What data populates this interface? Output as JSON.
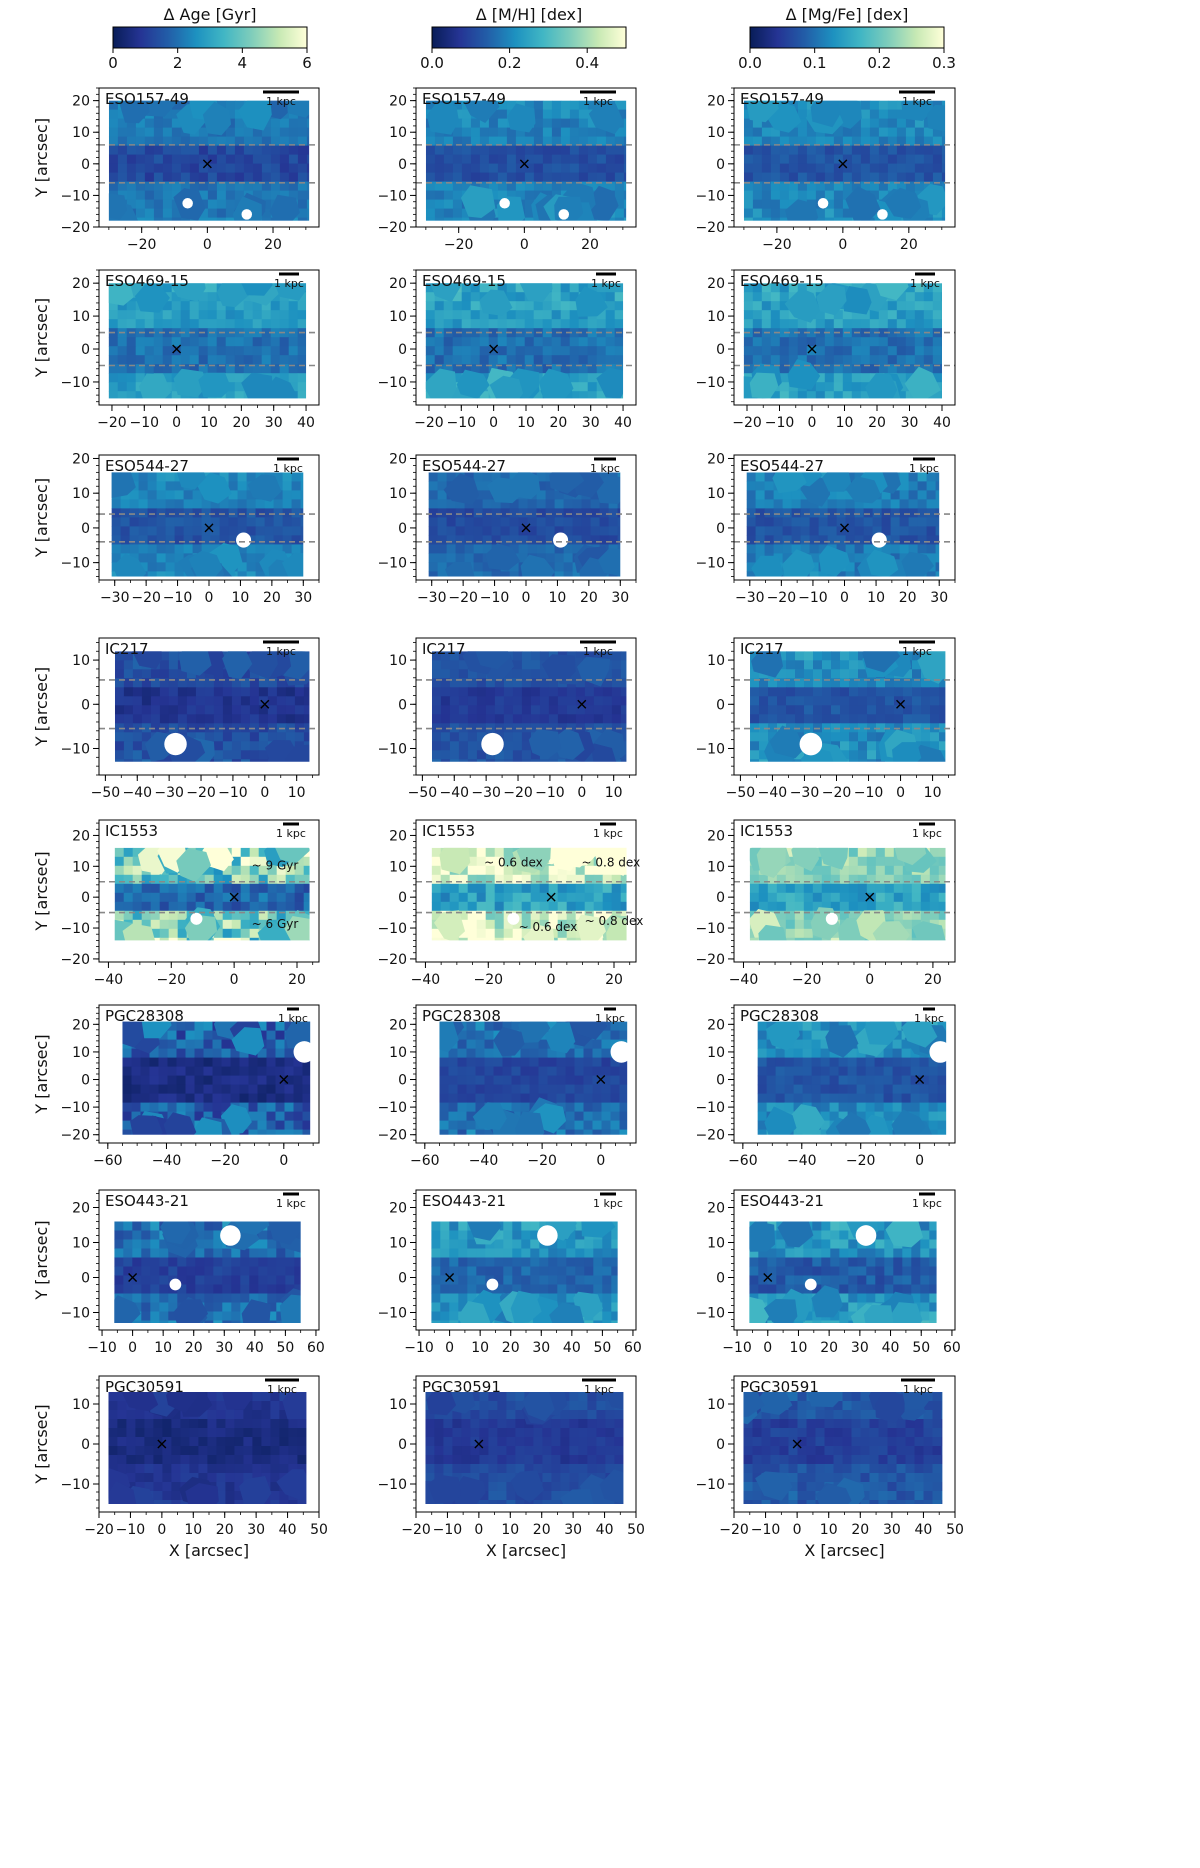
{
  "figure": {
    "columns": [
      {
        "key": "age",
        "colorbar_label": "Δ Age [Gyr]",
        "range": [
          0,
          6
        ],
        "ticks": [
          "0",
          "2",
          "4",
          "6"
        ],
        "tick_values": [
          0,
          2,
          4,
          6
        ]
      },
      {
        "key": "mh",
        "colorbar_label": "Δ [M/H] [dex]",
        "range": [
          0,
          0.5
        ],
        "ticks": [
          "0.0",
          "0.2",
          "0.4"
        ],
        "tick_values": [
          0,
          0.2,
          0.4
        ]
      },
      {
        "key": "mgfe",
        "colorbar_label": "Δ [Mg/Fe] [dex]",
        "range": [
          0,
          0.3
        ],
        "ticks": [
          "0.0",
          "0.1",
          "0.2",
          "0.3"
        ],
        "tick_values": [
          0,
          0.1,
          0.2,
          0.3
        ]
      }
    ],
    "colormap": [
      "#081d58",
      "#253494",
      "#225ea8",
      "#1d91c0",
      "#41b6c4",
      "#7fcdbb",
      "#c7e9b4",
      "#ffffd9"
    ],
    "ylabel": "Y [arcsec]",
    "xlabel": "X [arcsec]",
    "scalebar_label": "1 kpc"
  },
  "chart_data": [
    {
      "type": "heatmap",
      "galaxy": "ESO157-49",
      "xlim": [
        -33,
        34
      ],
      "ylim": [
        -20,
        24
      ],
      "xticks": [
        -20,
        0,
        20
      ],
      "yticks": [
        -20,
        -10,
        0,
        10,
        20
      ],
      "data_extent": {
        "x": [
          -30,
          31
        ],
        "y": [
          -18,
          20
        ]
      },
      "thin_disk": [
        -6,
        6
      ],
      "center": [
        0,
        0
      ],
      "masked": [
        {
          "x": -6,
          "y": -12.5,
          "r": 1
        },
        {
          "x": 12,
          "y": -16,
          "r": 1
        }
      ],
      "annotations": [],
      "age": {
        "mid": [
          0.9,
          1.6
        ],
        "outer": [
          1.8,
          2.6
        ]
      },
      "mh": {
        "mid": [
          0.09,
          0.14
        ],
        "outer": [
          0.16,
          0.24
        ]
      },
      "mgfe": {
        "mid": [
          0.06,
          0.09
        ],
        "outer": [
          0.1,
          0.15
        ]
      }
    },
    {
      "type": "heatmap",
      "galaxy": "ESO469-15",
      "xlim": [
        -24,
        44
      ],
      "ylim": [
        -17,
        24
      ],
      "xticks": [
        -20,
        -10,
        0,
        10,
        20,
        30,
        40
      ],
      "yticks": [
        -10,
        0,
        10,
        20
      ],
      "data_extent": {
        "x": [
          -21,
          40
        ],
        "y": [
          -15,
          20
        ]
      },
      "thin_disk": [
        -5,
        5
      ],
      "center": [
        0,
        0
      ],
      "masked": [],
      "annotations": [],
      "age": {
        "mid": [
          1.6,
          2.4
        ],
        "outer": [
          2.4,
          3.4
        ]
      },
      "mh": {
        "mid": [
          0.13,
          0.2
        ],
        "outer": [
          0.2,
          0.3
        ]
      },
      "mgfe": {
        "mid": [
          0.08,
          0.12
        ],
        "outer": [
          0.12,
          0.18
        ]
      }
    },
    {
      "type": "heatmap",
      "galaxy": "ESO544-27",
      "xlim": [
        -35,
        35
      ],
      "ylim": [
        -15,
        21
      ],
      "xticks": [
        -30,
        -20,
        -10,
        0,
        10,
        20,
        30
      ],
      "yticks": [
        -10,
        0,
        10,
        20
      ],
      "data_extent": {
        "x": [
          -31,
          30
        ],
        "y": [
          -14,
          16
        ]
      },
      "thin_disk": [
        -4,
        4
      ],
      "center": [
        0,
        0
      ],
      "masked": [
        {
          "x": 11,
          "y": -3.5,
          "r": 1.5
        }
      ],
      "annotations": [],
      "age": {
        "mid": [
          1.2,
          1.8
        ],
        "outer": [
          2.0,
          2.8
        ]
      },
      "mh": {
        "mid": [
          0.09,
          0.13
        ],
        "outer": [
          0.13,
          0.19
        ]
      },
      "mgfe": {
        "mid": [
          0.06,
          0.09
        ],
        "outer": [
          0.09,
          0.14
        ]
      }
    },
    {
      "type": "heatmap",
      "galaxy": "IC217",
      "xlim": [
        -52,
        17
      ],
      "ylim": [
        -16,
        15
      ],
      "xticks": [
        -50,
        -40,
        -30,
        -20,
        -10,
        0,
        10
      ],
      "yticks": [
        -10,
        0,
        10
      ],
      "data_extent": {
        "x": [
          -47,
          14
        ],
        "y": [
          -13,
          12
        ]
      },
      "thin_disk": [
        -5.5,
        5.5
      ],
      "center": [
        0,
        0
      ],
      "masked": [
        {
          "x": -28,
          "y": -9,
          "r": 2.2
        }
      ],
      "annotations": [],
      "age": {
        "mid": [
          0.5,
          1.1
        ],
        "outer": [
          1.0,
          1.9
        ]
      },
      "mh": {
        "mid": [
          0.06,
          0.1
        ],
        "outer": [
          0.1,
          0.15
        ]
      },
      "mgfe": {
        "mid": [
          0.06,
          0.09
        ],
        "outer": [
          0.1,
          0.16
        ]
      }
    },
    {
      "type": "heatmap",
      "galaxy": "IC1553",
      "xlim": [
        -43,
        27
      ],
      "ylim": [
        -21,
        25
      ],
      "xticks": [
        -40,
        -20,
        0,
        20
      ],
      "yticks": [
        -20,
        -10,
        0,
        10,
        20
      ],
      "data_extent": {
        "x": [
          -38,
          24
        ],
        "y": [
          -14,
          16
        ]
      },
      "thin_disk": [
        -5,
        5
      ],
      "center": [
        0,
        0
      ],
      "masked": [
        {
          "x": -12,
          "y": -7,
          "r": 1.2
        }
      ],
      "annotations": [
        {
          "panel": "age",
          "text": "~ 9 Gyr",
          "x": 13,
          "y": 9
        },
        {
          "panel": "age",
          "text": "~ 6 Gyr",
          "x": 13,
          "y": -10
        },
        {
          "panel": "mh",
          "text": "~ 0.6 dex",
          "x": -12,
          "y": 10
        },
        {
          "panel": "mh",
          "text": "~ 0.8 dex",
          "x": 19,
          "y": 10
        },
        {
          "panel": "mh",
          "text": "~ 0.6 dex",
          "x": -1,
          "y": -11
        },
        {
          "panel": "mh",
          "text": "~ 0.8 dex",
          "x": 20,
          "y": -9
        }
      ],
      "age": {
        "mid": [
          1.2,
          2.4
        ],
        "outer": [
          2.5,
          6.5
        ]
      },
      "mh": {
        "mid": [
          0.18,
          0.3
        ],
        "outer": [
          0.34,
          0.6
        ]
      },
      "mgfe": {
        "mid": [
          0.12,
          0.18
        ],
        "outer": [
          0.19,
          0.27
        ]
      }
    },
    {
      "type": "heatmap",
      "galaxy": "PGC28308",
      "xlim": [
        -63,
        12
      ],
      "ylim": [
        -23,
        27
      ],
      "xticks": [
        -60,
        -40,
        -20,
        0
      ],
      "yticks": [
        -20,
        -10,
        0,
        10,
        20
      ],
      "data_extent": {
        "x": [
          -55,
          9
        ],
        "y": [
          -20,
          21
        ]
      },
      "thin_disk": null,
      "center": [
        0,
        0
      ],
      "masked": [
        {
          "x": 7,
          "y": 10,
          "r": 2.3
        }
      ],
      "annotations": [],
      "age": {
        "mid": [
          0.3,
          0.9
        ],
        "outer": [
          0.8,
          2.8
        ]
      },
      "mh": {
        "mid": [
          0.08,
          0.12
        ],
        "outer": [
          0.12,
          0.22
        ]
      },
      "mgfe": {
        "mid": [
          0.06,
          0.09
        ],
        "outer": [
          0.1,
          0.16
        ]
      }
    },
    {
      "type": "heatmap",
      "galaxy": "ESO443-21",
      "xlim": [
        -11,
        61
      ],
      "ylim": [
        -15,
        25
      ],
      "xticks": [
        -10,
        0,
        10,
        20,
        30,
        40,
        50,
        60
      ],
      "yticks": [
        -10,
        0,
        10,
        20
      ],
      "data_extent": {
        "x": [
          -6,
          55
        ],
        "y": [
          -13,
          16
        ]
      },
      "thin_disk": null,
      "center": [
        0,
        0
      ],
      "masked": [
        {
          "x": 32,
          "y": 12,
          "r": 2.1
        },
        {
          "x": 14,
          "y": -2,
          "r": 1.2
        }
      ],
      "annotations": [],
      "age": {
        "mid": [
          0.8,
          1.4
        ],
        "outer": [
          1.3,
          2.8
        ]
      },
      "mh": {
        "mid": [
          0.12,
          0.18
        ],
        "outer": [
          0.18,
          0.28
        ]
      },
      "mgfe": {
        "mid": [
          0.06,
          0.1
        ],
        "outer": [
          0.1,
          0.18
        ]
      }
    },
    {
      "type": "heatmap",
      "galaxy": "PGC30591",
      "xlim": [
        -20,
        50
      ],
      "ylim": [
        -17,
        17
      ],
      "xticks": [
        -20,
        -10,
        0,
        10,
        20,
        30,
        40,
        50
      ],
      "yticks": [
        -10,
        0,
        10
      ],
      "data_extent": {
        "x": [
          -17,
          46
        ],
        "y": [
          -15,
          13
        ]
      },
      "thin_disk": null,
      "center": [
        0,
        0
      ],
      "masked": [],
      "annotations": [],
      "age": {
        "mid": [
          0.3,
          0.8
        ],
        "outer": [
          0.6,
          1.2
        ]
      },
      "mh": {
        "mid": [
          0.06,
          0.1
        ],
        "outer": [
          0.09,
          0.14
        ]
      },
      "mgfe": {
        "mid": [
          0.04,
          0.07
        ],
        "outer": [
          0.06,
          0.1
        ]
      }
    }
  ]
}
